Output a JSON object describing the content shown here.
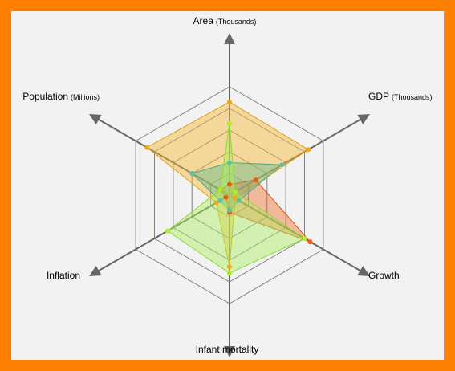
{
  "colors": {
    "border": "#ff8000",
    "background": "#f2f2f2",
    "grid": "#808080",
    "axis": "#666666"
  },
  "chart_data": {
    "type": "radar",
    "axes": [
      {
        "label": "Area",
        "unit": "(Thousands)"
      },
      {
        "label": "GDP",
        "unit": "(Thousands)"
      },
      {
        "label": "Growth",
        "unit": ""
      },
      {
        "label": "Infant mortality",
        "unit": ""
      },
      {
        "label": "Inflation",
        "unit": ""
      },
      {
        "label": "Population",
        "unit": "(Millions)"
      }
    ],
    "rings": 5,
    "range": [
      0,
      5
    ],
    "grid": true,
    "series": [
      {
        "values": [
          4.3,
          4.2,
          0.3,
          3.3,
          0.7,
          4.4
        ],
        "fill": "#f5b630",
        "stroke": "#e0a010",
        "point": "#f0a818"
      },
      {
        "values": [
          0.5,
          1.4,
          4.3,
          0.8,
          0.2,
          0.5
        ],
        "fill": "#f07030",
        "stroke": "#e05010",
        "point": "#f05a10"
      },
      {
        "values": [
          1.5,
          2.8,
          0.5,
          0.7,
          0.5,
          2.0
        ],
        "fill": "#66bb88",
        "stroke": "#50aa80",
        "point": "#60c0a0"
      },
      {
        "values": [
          3.3,
          0.3,
          4.0,
          3.6,
          3.3,
          0.5
        ],
        "fill": "#aaf060",
        "stroke": "#88dd30",
        "point": "#a8f020"
      }
    ]
  }
}
